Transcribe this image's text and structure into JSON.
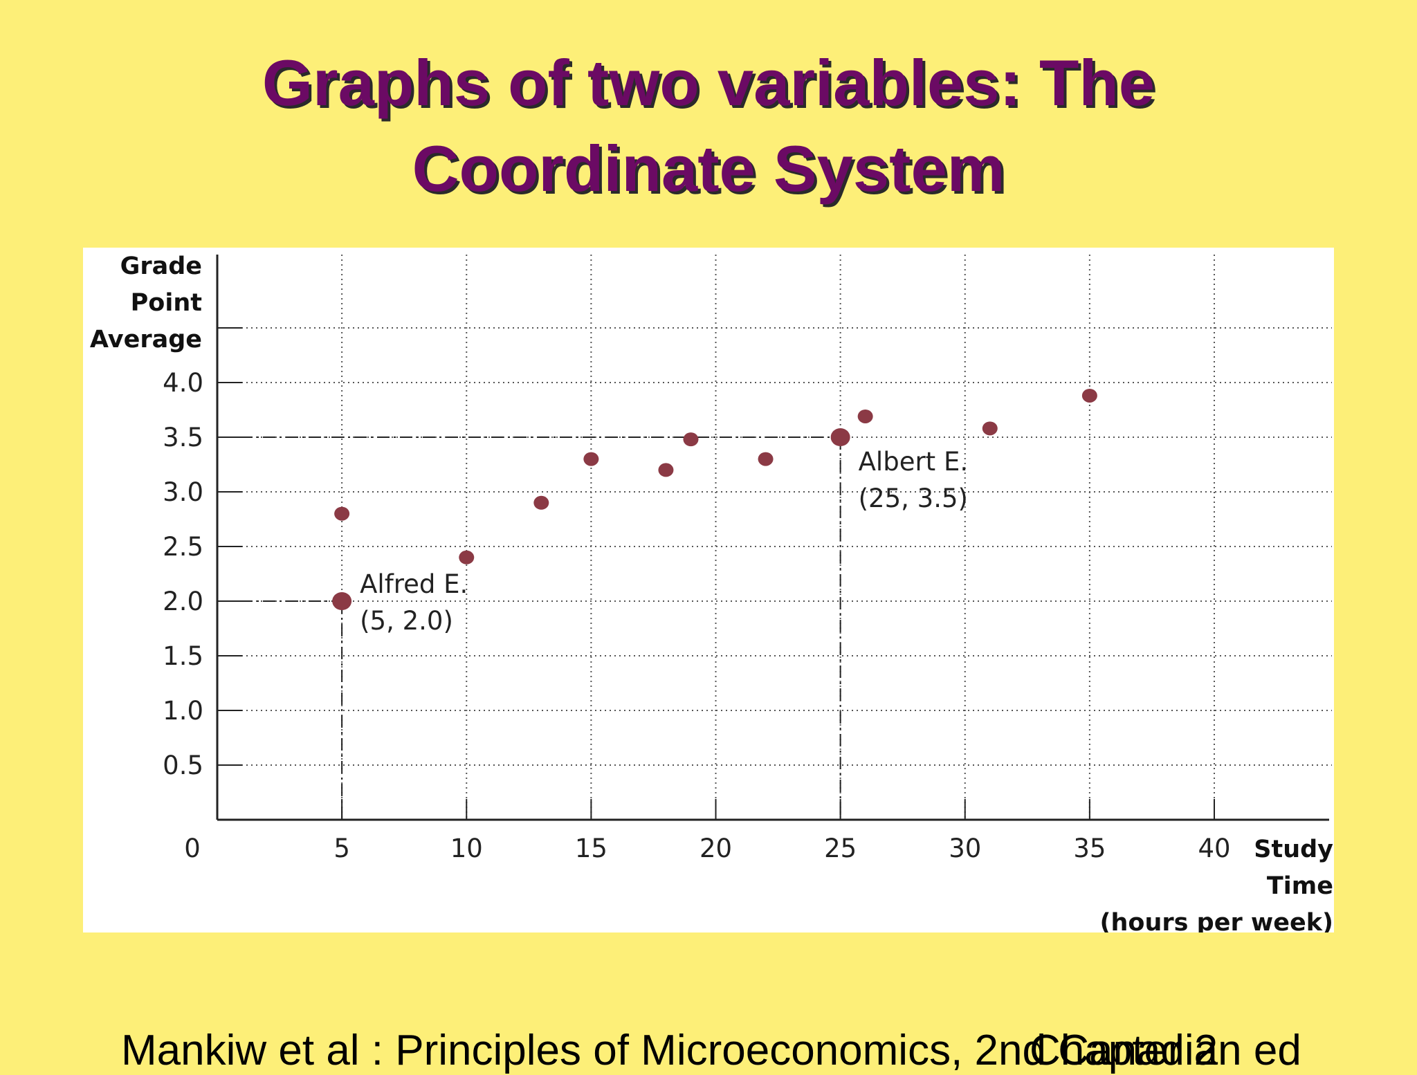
{
  "slide": {
    "title_line1": "Graphs of two variables: The",
    "title_line2": "Coordinate System",
    "footer_left": "Mankiw et al : Principles of Microeconomics, 2nd Canadian ed",
    "footer_right": "Chapter 2"
  },
  "colors": {
    "background": "#fdef78",
    "title": "#6b0a64",
    "point": "#8b3a45",
    "axis": "#222222"
  },
  "chart_data": {
    "type": "scatter",
    "ylabel_lines": [
      "Grade",
      "Point",
      "Average"
    ],
    "xlabel_lines": [
      "Study",
      "Time",
      "(hours per week)"
    ],
    "xlim": [
      0,
      40
    ],
    "ylim": [
      0,
      4.0
    ],
    "x_ticks": [
      "0",
      "5",
      "10",
      "15",
      "20",
      "25",
      "30",
      "35",
      "40"
    ],
    "y_ticks": [
      "0.5",
      "1.0",
      "1.5",
      "2.0",
      "2.5",
      "3.0",
      "3.5",
      "4.0"
    ],
    "grid": true,
    "points": [
      {
        "x": 5,
        "y": 2.8
      },
      {
        "x": 5,
        "y": 2.0,
        "highlight": true
      },
      {
        "x": 10,
        "y": 2.4
      },
      {
        "x": 13,
        "y": 2.9
      },
      {
        "x": 15,
        "y": 3.3
      },
      {
        "x": 18,
        "y": 3.2
      },
      {
        "x": 19,
        "y": 3.48
      },
      {
        "x": 22,
        "y": 3.3
      },
      {
        "x": 25,
        "y": 3.5,
        "highlight": true
      },
      {
        "x": 26,
        "y": 3.69
      },
      {
        "x": 31,
        "y": 3.58
      },
      {
        "x": 35,
        "y": 3.88
      }
    ],
    "annotations": [
      {
        "name": "Alfred E.",
        "coords": "(5, 2.0)",
        "x": 5,
        "y": 2.0
      },
      {
        "name": "Albert E.",
        "coords": "(25, 3.5)",
        "x": 25,
        "y": 3.5
      }
    ]
  }
}
